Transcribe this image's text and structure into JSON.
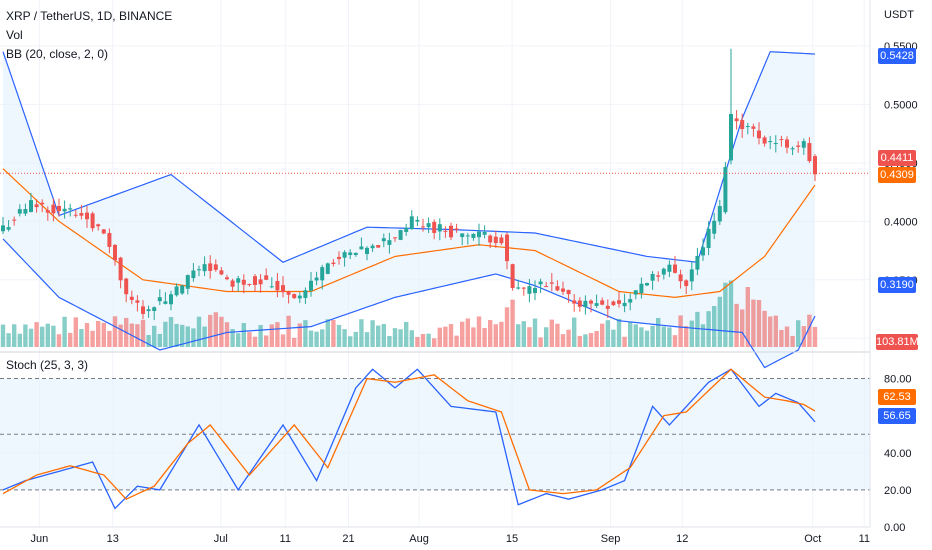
{
  "header": {
    "symbol": "XRP / TetherUS, 1D, BINANCE",
    "vol_label": "Vol",
    "bb_label": "BB (20, close, 2, 0)",
    "stoch_label": "Stoch (25, 3, 3)",
    "currency": "USDT"
  },
  "price_axis": {
    "ticks": [
      "0.5500",
      "0.5000",
      "0.4500",
      "0.4000",
      "0.3500",
      "0.3000"
    ]
  },
  "tags": {
    "bb_upper": "0.5428",
    "last_price": "0.4411",
    "bb_basis": "0.4309",
    "bb_lower": "0.3190",
    "volume": "103.81M",
    "stoch_d": "62.53",
    "stoch_k": "56.65"
  },
  "stoch_axis": {
    "ticks": [
      "80.00",
      "40.00",
      "20.00",
      "0.00"
    ]
  },
  "time_axis": {
    "labels": [
      "Jun",
      "13",
      "Jul",
      "11",
      "21",
      "Aug",
      "15",
      "Sep",
      "12",
      "Oct",
      "11"
    ]
  },
  "colors": {
    "up": "#26a69a",
    "down": "#ef5350",
    "bb_band": "#2962ff",
    "bb_basis": "#ff6d00",
    "stoch_k": "#2962ff",
    "stoch_d": "#ff6d00",
    "band_fill": "#e3f2fd"
  },
  "chart_data": [
    {
      "type": "candlestick",
      "title": "XRP / TetherUS, 1D, BINANCE",
      "ylabel": "USDT",
      "ylim": [
        0.29,
        0.555
      ],
      "x": [
        "Jun",
        "13",
        "Jul",
        "11",
        "21",
        "Aug",
        "15",
        "Sep",
        "12",
        "Oct",
        "11"
      ],
      "close_anchors": [
        [
          0,
          0.395
        ],
        [
          5,
          0.415
        ],
        [
          15,
          0.405
        ],
        [
          19,
          0.38
        ],
        [
          22,
          0.335
        ],
        [
          25,
          0.325
        ],
        [
          30,
          0.335
        ],
        [
          36,
          0.365
        ],
        [
          40,
          0.348
        ],
        [
          46,
          0.35
        ],
        [
          53,
          0.335
        ],
        [
          58,
          0.365
        ],
        [
          65,
          0.375
        ],
        [
          70,
          0.388
        ],
        [
          73,
          0.4
        ],
        [
          81,
          0.39
        ],
        [
          89,
          0.385
        ],
        [
          91,
          0.34
        ],
        [
          97,
          0.345
        ],
        [
          103,
          0.33
        ],
        [
          111,
          0.33
        ],
        [
          116,
          0.355
        ],
        [
          119,
          0.36
        ],
        [
          122,
          0.348
        ],
        [
          125,
          0.38
        ],
        [
          128,
          0.41
        ],
        [
          130,
          0.49
        ],
        [
          136,
          0.47
        ],
        [
          140,
          0.465
        ],
        [
          143,
          0.465
        ],
        [
          145,
          0.441
        ]
      ],
      "bb_upper": [
        [
          0,
          0.545
        ],
        [
          10,
          0.405
        ],
        [
          30,
          0.44
        ],
        [
          38,
          0.41
        ],
        [
          50,
          0.365
        ],
        [
          65,
          0.395
        ],
        [
          80,
          0.393
        ],
        [
          95,
          0.39
        ],
        [
          115,
          0.37
        ],
        [
          124,
          0.365
        ],
        [
          132,
          0.488
        ],
        [
          137,
          0.545
        ],
        [
          145,
          0.543
        ]
      ],
      "bb_basis": [
        [
          0,
          0.445
        ],
        [
          10,
          0.4
        ],
        [
          25,
          0.35
        ],
        [
          40,
          0.34
        ],
        [
          55,
          0.34
        ],
        [
          70,
          0.37
        ],
        [
          85,
          0.38
        ],
        [
          95,
          0.375
        ],
        [
          110,
          0.34
        ],
        [
          120,
          0.335
        ],
        [
          128,
          0.34
        ],
        [
          136,
          0.37
        ],
        [
          145,
          0.431
        ]
      ],
      "bb_lower": [
        [
          0,
          0.385
        ],
        [
          10,
          0.335
        ],
        [
          28,
          0.29
        ],
        [
          40,
          0.305
        ],
        [
          55,
          0.31
        ],
        [
          70,
          0.335
        ],
        [
          88,
          0.355
        ],
        [
          95,
          0.345
        ],
        [
          110,
          0.315
        ],
        [
          120,
          0.31
        ],
        [
          132,
          0.305
        ],
        [
          136,
          0.275
        ],
        [
          142,
          0.29
        ],
        [
          145,
          0.319
        ]
      ],
      "last_volume": "103.81M"
    },
    {
      "type": "line",
      "title": "Stoch (25, 3, 3)",
      "ylim": [
        0,
        90
      ],
      "levels": [
        80,
        50,
        20
      ],
      "x": [
        "Jun",
        "13",
        "Jul",
        "11",
        "21",
        "Aug",
        "15",
        "Sep",
        "12",
        "Oct",
        "11"
      ],
      "series": [
        {
          "name": "%K",
          "points": [
            [
              0,
              20
            ],
            [
              4,
              25
            ],
            [
              10,
              30
            ],
            [
              16,
              35
            ],
            [
              20,
              10
            ],
            [
              24,
              22
            ],
            [
              28,
              20
            ],
            [
              35,
              55
            ],
            [
              42,
              20
            ],
            [
              50,
              55
            ],
            [
              56,
              25
            ],
            [
              63,
              75
            ],
            [
              66,
              85
            ],
            [
              70,
              75
            ],
            [
              74,
              85
            ],
            [
              80,
              65
            ],
            [
              88,
              62
            ],
            [
              92,
              12
            ],
            [
              97,
              18
            ],
            [
              101,
              15
            ],
            [
              107,
              20
            ],
            [
              111,
              25
            ],
            [
              116,
              65
            ],
            [
              119,
              55
            ],
            [
              126,
              78
            ],
            [
              130,
              85
            ],
            [
              135,
              65
            ],
            [
              138,
              72
            ],
            [
              142,
              67
            ],
            [
              145,
              56.65
            ]
          ]
        },
        {
          "name": "%D",
          "points": [
            [
              0,
              18
            ],
            [
              6,
              28
            ],
            [
              12,
              33
            ],
            [
              18,
              28
            ],
            [
              22,
              15
            ],
            [
              27,
              22
            ],
            [
              33,
              45
            ],
            [
              37,
              55
            ],
            [
              44,
              28
            ],
            [
              52,
              55
            ],
            [
              58,
              32
            ],
            [
              65,
              80
            ],
            [
              70,
              78
            ],
            [
              77,
              82
            ],
            [
              83,
              68
            ],
            [
              89,
              62
            ],
            [
              94,
              20
            ],
            [
              100,
              18
            ],
            [
              106,
              20
            ],
            [
              112,
              32
            ],
            [
              118,
              60
            ],
            [
              122,
              62
            ],
            [
              130,
              85
            ],
            [
              136,
              70
            ],
            [
              140,
              68
            ],
            [
              143,
              66
            ],
            [
              145,
              62.53
            ]
          ]
        }
      ]
    }
  ]
}
